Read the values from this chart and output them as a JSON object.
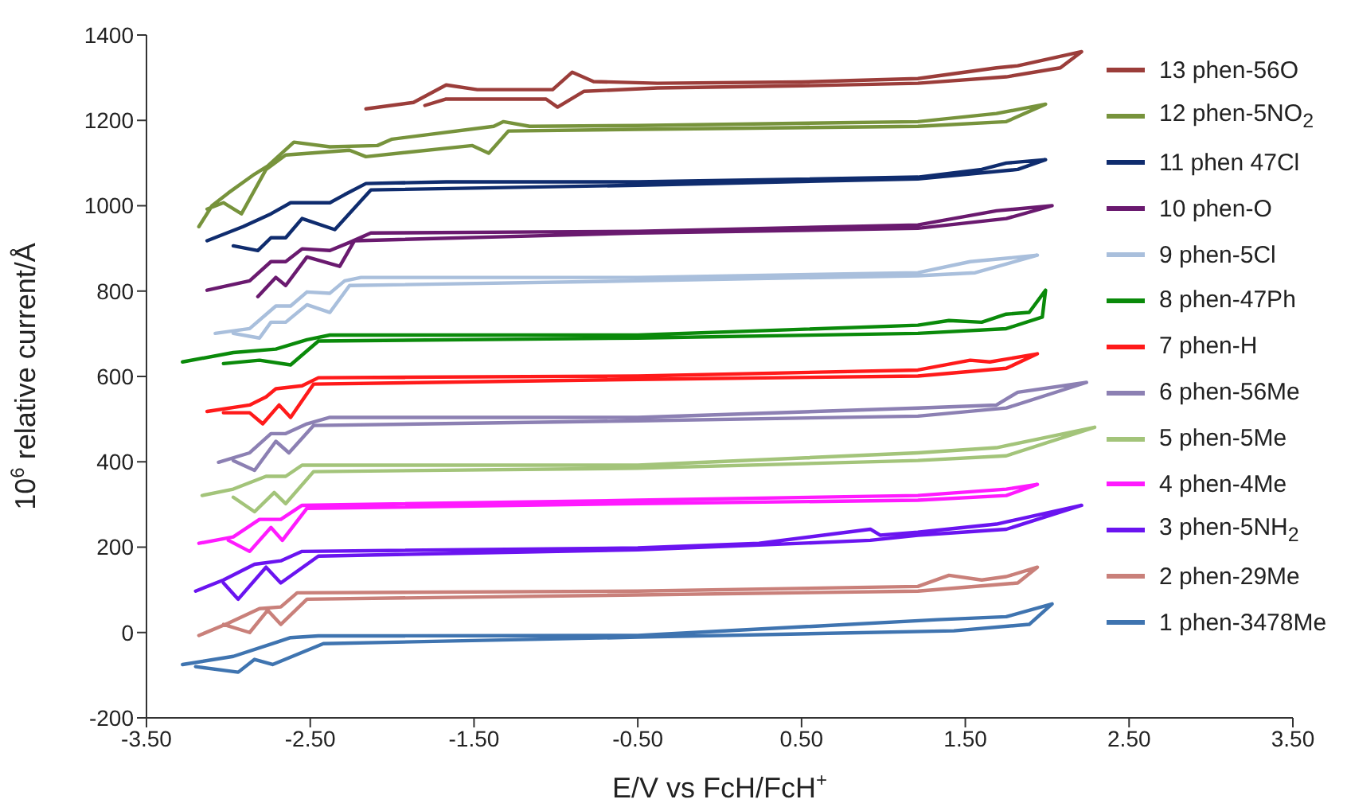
{
  "chart_data": {
    "type": "line",
    "xlabel": "E/V vs FcH/FcH$^{+}$",
    "ylabel": "10$^{6}$ relative current/Å",
    "xlim": [
      -3.5,
      3.5
    ],
    "xticks": [
      {
        "value": -3.5,
        "label": "-3.50"
      },
      {
        "value": -2.5,
        "label": "-2.50"
      },
      {
        "value": -1.5,
        "label": "-1.50"
      },
      {
        "value": -0.5,
        "label": "-0.50"
      },
      {
        "value": 0.5,
        "label": "0.50"
      },
      {
        "value": 1.5,
        "label": "1.50"
      },
      {
        "value": 2.5,
        "label": "2.50"
      },
      {
        "value": 3.5,
        "label": "3.50"
      }
    ],
    "ylim": [
      -200,
      1400
    ],
    "yticks": [
      -200,
      0,
      200,
      400,
      600,
      800,
      1000,
      1200,
      1400
    ],
    "grid": false,
    "legend": "right",
    "marker": "none",
    "line_style": "solid",
    "series": [
      {
        "name": "13 phen-56O",
        "color": "#9b3d3a",
        "x": [
          -2.16,
          -1.87,
          -1.67,
          -1.48,
          -1.02,
          -0.9,
          -0.77,
          -0.38,
          0.5,
          1.21,
          1.69,
          1.82,
          2.21,
          2.08,
          1.75,
          1.21,
          0.5,
          -0.38,
          -0.83,
          -0.99,
          -1.06,
          -1.67,
          -1.8
        ],
        "values": [
          1227,
          1242,
          1283,
          1272,
          1272,
          1313,
          1291,
          1287,
          1290,
          1298,
          1323,
          1328,
          1361,
          1323,
          1302,
          1287,
          1281,
          1276,
          1268,
          1231,
          1250,
          1250,
          1235
        ]
      },
      {
        "name": "12 phen-5NO$_{2}$",
        "color": "#77933c",
        "x": [
          -3.18,
          -3.1,
          -3.0,
          -2.84,
          -2.76,
          -2.6,
          -2.38,
          -2.09,
          -2.0,
          -1.38,
          -1.32,
          -1.16,
          -0.5,
          1.21,
          1.69,
          1.99,
          1.75,
          1.21,
          -0.5,
          -1.29,
          -1.41,
          -1.51,
          -2.16,
          -2.26,
          -2.65,
          -2.77,
          -2.92,
          -3.03,
          -3.13
        ],
        "values": [
          951,
          1000,
          1030,
          1074,
          1093,
          1149,
          1138,
          1141,
          1156,
          1186,
          1197,
          1186,
          1188,
          1197,
          1216,
          1238,
          1197,
          1186,
          1179,
          1175,
          1123,
          1141,
          1115,
          1130,
          1119,
          1085,
          981,
          1007,
          992
        ]
      },
      {
        "name": "11 phen 47Cl",
        "color": "#0f2c6e",
        "x": [
          -3.13,
          -2.91,
          -2.74,
          -2.62,
          -2.38,
          -2.29,
          -2.16,
          -1.67,
          -0.5,
          1.21,
          1.6,
          1.75,
          1.99,
          1.82,
          1.21,
          -0.5,
          -2.13,
          -2.35,
          -2.55,
          -2.65,
          -2.74,
          -2.82,
          -2.97
        ],
        "values": [
          918,
          951,
          981,
          1007,
          1007,
          1026,
          1052,
          1056,
          1056,
          1067,
          1085,
          1100,
          1108,
          1085,
          1063,
          1048,
          1037,
          944,
          970,
          925,
          925,
          895,
          906
        ]
      },
      {
        "name": "10 phen-O",
        "color": "#6a1a6f",
        "x": [
          -3.13,
          -2.87,
          -2.74,
          -2.65,
          -2.55,
          -2.38,
          -2.26,
          -2.13,
          -0.5,
          1.21,
          1.69,
          2.03,
          1.75,
          1.21,
          -0.5,
          -2.23,
          -2.32,
          -2.52,
          -2.65,
          -2.71,
          -2.82
        ],
        "values": [
          802,
          824,
          869,
          869,
          899,
          895,
          914,
          936,
          940,
          955,
          988,
          1000,
          970,
          947,
          936,
          918,
          858,
          880,
          813,
          832,
          787
        ]
      },
      {
        "name": "9 phen-5Cl",
        "color": "#a9bfdc",
        "x": [
          -3.08,
          -2.87,
          -2.71,
          -2.62,
          -2.52,
          -2.38,
          -2.29,
          -2.19,
          -0.5,
          1.21,
          1.53,
          1.94,
          1.56,
          1.21,
          -0.5,
          -2.26,
          -2.38,
          -2.52,
          -2.65,
          -2.74,
          -2.81,
          -2.97
        ],
        "values": [
          701,
          712,
          765,
          765,
          798,
          795,
          824,
          832,
          832,
          843,
          869,
          884,
          843,
          836,
          824,
          813,
          750,
          768,
          727,
          727,
          690,
          701
        ]
      },
      {
        "name": "8 phen-47Ph",
        "color": "#0a8a0a",
        "x": [
          -3.28,
          -2.97,
          -2.71,
          -2.52,
          -2.38,
          -0.5,
          1.21,
          1.4,
          1.6,
          1.75,
          1.89,
          1.99,
          1.97,
          1.75,
          1.21,
          -0.5,
          -2.45,
          -2.62,
          -2.81,
          -3.03
        ],
        "values": [
          634,
          656,
          664,
          686,
          697,
          697,
          720,
          731,
          727,
          746,
          750,
          802,
          739,
          712,
          701,
          690,
          683,
          627,
          638,
          630
        ]
      },
      {
        "name": "7 phen-H",
        "color": "#ff1a1a",
        "x": [
          -3.13,
          -2.87,
          -2.77,
          -2.71,
          -2.55,
          -2.45,
          -0.5,
          1.21,
          1.53,
          1.65,
          1.94,
          1.75,
          1.21,
          -0.5,
          -2.48,
          -2.62,
          -2.69,
          -2.79,
          -2.87,
          -3.03
        ],
        "values": [
          518,
          533,
          552,
          571,
          578,
          597,
          601,
          615,
          638,
          634,
          653,
          619,
          601,
          593,
          582,
          504,
          533,
          489,
          515,
          515
        ]
      },
      {
        "name": "6 phen-56Me",
        "color": "#8c80b3",
        "x": [
          -3.06,
          -2.87,
          -2.74,
          -2.65,
          -2.52,
          -2.38,
          -0.5,
          1.21,
          1.69,
          1.82,
          2.24,
          1.75,
          1.21,
          -0.5,
          -2.48,
          -2.63,
          -2.71,
          -2.84,
          -2.97
        ],
        "values": [
          399,
          421,
          466,
          466,
          489,
          504,
          504,
          526,
          533,
          563,
          586,
          526,
          507,
          496,
          485,
          421,
          448,
          380,
          403
        ]
      },
      {
        "name": "5 phen-5Me",
        "color": "#a3c47a",
        "x": [
          -3.16,
          -2.97,
          -2.77,
          -2.65,
          -2.55,
          -0.5,
          1.21,
          1.69,
          2.29,
          1.75,
          1.21,
          -0.5,
          -2.48,
          -2.65,
          -2.72,
          -2.84,
          -2.97
        ],
        "values": [
          321,
          336,
          366,
          366,
          392,
          392,
          421,
          433,
          481,
          414,
          403,
          385,
          377,
          302,
          328,
          283,
          317
        ]
      },
      {
        "name": "4 phen-4Me",
        "color": "#ff1aff",
        "x": [
          -3.18,
          -2.97,
          -2.81,
          -2.68,
          -2.55,
          -0.5,
          1.21,
          1.75,
          1.94,
          1.75,
          1.21,
          -0.5,
          -2.52,
          -2.67,
          -2.74,
          -2.87,
          -3.0
        ],
        "values": [
          209,
          224,
          265,
          265,
          298,
          310,
          321,
          336,
          347,
          321,
          310,
          302,
          291,
          216,
          246,
          190,
          216
        ]
      },
      {
        "name": "3 phen-5NH$_{2}$",
        "color": "#6a14f0",
        "x": [
          -3.2,
          -3.03,
          -2.84,
          -2.68,
          -2.55,
          -0.5,
          0.24,
          0.92,
          0.98,
          1.21,
          1.69,
          2.21,
          1.75,
          1.21,
          0.92,
          0.24,
          -0.5,
          -2.45,
          -2.68,
          -2.77,
          -2.94,
          -3.03
        ],
        "values": [
          97,
          123,
          160,
          168,
          190,
          198,
          209,
          242,
          228,
          235,
          254,
          298,
          242,
          228,
          216,
          205,
          194,
          179,
          116,
          153,
          78,
          116
        ]
      },
      {
        "name": "2 phen-29Me",
        "color": "#c9807a",
        "x": [
          -3.18,
          -3.0,
          -2.81,
          -2.68,
          -2.58,
          -0.5,
          1.21,
          1.4,
          1.6,
          1.75,
          1.94,
          1.82,
          1.21,
          -0.5,
          -2.52,
          -2.68,
          -2.76,
          -2.87,
          -3.03
        ],
        "values": [
          -7,
          22,
          56,
          60,
          93,
          97,
          108,
          134,
          123,
          131,
          153,
          116,
          97,
          88,
          78,
          19,
          52,
          0,
          19
        ]
      },
      {
        "name": "1 phen-3478Me",
        "color": "#3f74b0",
        "x": [
          -3.28,
          -2.97,
          -2.7,
          -2.62,
          -2.45,
          -0.5,
          1.33,
          1.75,
          2.03,
          1.89,
          1.43,
          -0.5,
          -2.42,
          -2.73,
          -2.84,
          -2.94,
          -3.2
        ],
        "values": [
          -75,
          -56,
          -22,
          -12,
          -8,
          -7,
          30,
          37,
          67,
          19,
          4,
          -11,
          -26,
          -75,
          -63,
          -93,
          -80
        ]
      }
    ]
  }
}
